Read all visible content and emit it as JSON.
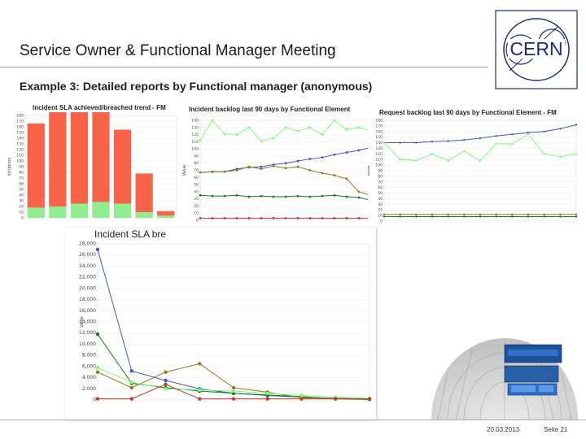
{
  "slide": {
    "title": "Service Owner & Functional Manager Meeting",
    "subtitle": "Example 3: Detailed reports by Functional manager (anonymous)",
    "footer_date": "20.03.2013",
    "footer_page": "Seite 21",
    "logo_text": "CERN",
    "colors": {
      "accent": "#1d2b7a",
      "rule": "#9a9a9a"
    }
  },
  "chart_data": [
    {
      "id": "sla-trend",
      "type": "bar",
      "title": "Incident SLA achieved/breached trend - FM",
      "ylabel": "Incidents",
      "ylim": [
        0,
        180
      ],
      "yticks": [
        "180",
        "170",
        "160",
        "150",
        "140",
        "130",
        "120",
        "110",
        "100",
        "90",
        "80",
        "70",
        "60",
        "50",
        "40",
        "30",
        "20",
        "10",
        "0"
      ],
      "categories": [
        "",
        "",
        "",
        "",
        "",
        "",
        ""
      ],
      "series": [
        {
          "color": "#90ee90",
          "values": [
            18,
            20,
            25,
            28,
            25,
            10,
            4
          ]
        },
        {
          "color": "#f7644a",
          "values": [
            148,
            172,
            178,
            160,
            130,
            68,
            8
          ]
        }
      ]
    },
    {
      "id": "incident-backlog",
      "type": "line",
      "title": "Incident backlog last 90 days by Functional Element",
      "ylabel": "Value",
      "ylim": [
        0,
        140
      ],
      "yticks": [
        "140",
        "130",
        "120",
        "110",
        "100",
        "90",
        "80",
        "70",
        "60",
        "50",
        "40",
        "30",
        "20",
        "10",
        "0"
      ],
      "categories": [
        "",
        "",
        "",
        "",
        "",
        "",
        "",
        "",
        "",
        "",
        "",
        "",
        "",
        "",
        ""
      ],
      "series": [
        {
          "color": "#7cfc7c",
          "values": [
            112,
            140,
            121,
            120,
            130,
            111,
            115,
            130,
            125,
            130,
            120,
            140,
            127,
            130,
            125
          ]
        },
        {
          "color": "#4455cc",
          "values": [
            67,
            68,
            68,
            72,
            74,
            75,
            78,
            80,
            83,
            86,
            88,
            92,
            95,
            98,
            102
          ]
        },
        {
          "color": "#8b7d1b",
          "values": [
            67,
            68,
            68,
            70,
            75,
            72,
            76,
            73,
            75,
            70,
            66,
            63,
            58,
            40,
            35
          ]
        },
        {
          "color": "#1a7a1a",
          "values": [
            35,
            34,
            34,
            35,
            33,
            34,
            33,
            33,
            34,
            33,
            34,
            35,
            33,
            32,
            28
          ]
        },
        {
          "color": "#c0392b",
          "values": [
            3,
            3,
            3,
            3,
            3,
            3,
            3,
            3,
            3,
            3,
            3,
            3,
            3,
            3,
            3
          ]
        }
      ]
    },
    {
      "id": "request-backlog",
      "type": "line",
      "title": "Request backlog last 90 days by Functional Element - FM",
      "ylabel": "Value",
      "ylim": [
        0,
        180
      ],
      "yticks": [
        "180",
        "170",
        "160",
        "150",
        "140",
        "130",
        "120",
        "110",
        "100",
        "90",
        "80",
        "70",
        "60",
        "50",
        "40",
        "30",
        "20",
        "10",
        "0"
      ],
      "categories": [
        "",
        "",
        "",
        "",
        "",
        "",
        "",
        "",
        "",
        "",
        "",
        "",
        ""
      ],
      "series": [
        {
          "color": "#4455cc",
          "values": [
            140,
            140,
            140,
            142,
            143,
            145,
            148,
            152,
            155,
            158,
            160,
            165,
            172
          ]
        },
        {
          "color": "#7cfc7c",
          "values": [
            140,
            110,
            108,
            120,
            108,
            125,
            108,
            138,
            138,
            155,
            120,
            115,
            120
          ]
        },
        {
          "color": "#8b7d1b",
          "values": [
            12,
            12,
            12,
            12,
            12,
            12,
            12,
            12,
            12,
            12,
            12,
            12,
            12
          ]
        },
        {
          "color": "#1a7a1a",
          "values": [
            8,
            8,
            8,
            8,
            8,
            8,
            8,
            8,
            8,
            8,
            8,
            8,
            8
          ]
        }
      ]
    },
    {
      "id": "incident-sla-breached",
      "type": "line",
      "title": "Incident SLA bre",
      "ylabel": "Value",
      "ylim": [
        0,
        28000
      ],
      "yticks": [
        "28,000",
        "26,000",
        "24,000",
        "22,000",
        "20,000",
        "18,000",
        "16,000",
        "14,000",
        "12,000",
        "10,000",
        "8,000",
        "6,000",
        "4,000",
        "2,000",
        "0"
      ],
      "categories": [
        "",
        "",
        "",
        "",
        "",
        "",
        "",
        "",
        ""
      ],
      "series": [
        {
          "color": "#4455cc",
          "values": [
            27000,
            5200,
            3500,
            2000,
            1200,
            800,
            500,
            300,
            200
          ]
        },
        {
          "color": "#1a7a1a",
          "values": [
            11800,
            3000,
            2200,
            1600,
            1200,
            900,
            600,
            200,
            100
          ]
        },
        {
          "color": "#8b7d1b",
          "values": [
            5000,
            2200,
            5000,
            6500,
            2200,
            1400,
            400,
            300,
            200
          ]
        },
        {
          "color": "#7cfc7c",
          "values": [
            5800,
            3200,
            2000,
            1800,
            1600,
            1200,
            800,
            500,
            300
          ]
        },
        {
          "color": "#c0392b",
          "values": [
            200,
            200,
            2800,
            200,
            200,
            200,
            200,
            200,
            200
          ]
        }
      ]
    }
  ]
}
